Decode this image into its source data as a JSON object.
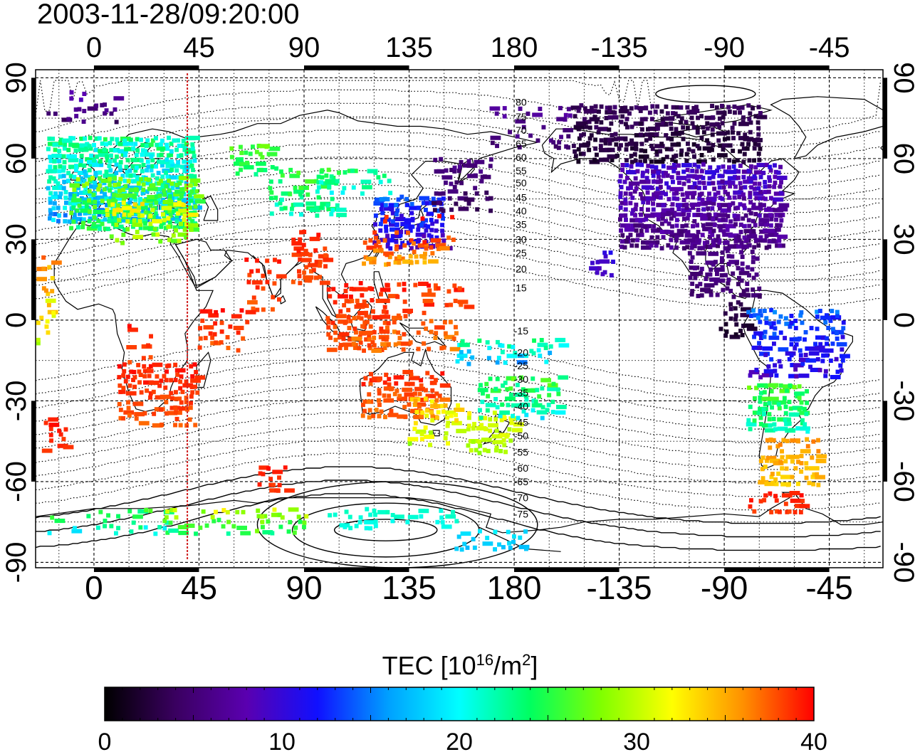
{
  "timestamp": "2003-11-28/09:20:00",
  "colorbar": {
    "title_prefix": "TEC  [10",
    "title_sup1": "16",
    "title_mid": "/m",
    "title_sup2": "2",
    "title_suffix": "]",
    "range": [
      0,
      40
    ],
    "tick_labels": [
      "0",
      "10",
      "20",
      "30",
      "40"
    ],
    "tick_values": [
      0,
      10,
      20,
      30,
      40
    ],
    "stops": [
      "#000000",
      "#3a0060",
      "#5a00b0",
      "#1010ff",
      "#00a0ff",
      "#00ffff",
      "#00ff60",
      "#80ff00",
      "#ffff00",
      "#ff9000",
      "#ff0000"
    ]
  },
  "axes": {
    "longitude_labels": [
      "0",
      "45",
      "90",
      "135",
      "180",
      "-135",
      "-90",
      "-45"
    ],
    "longitude_values": [
      0,
      45,
      90,
      135,
      180,
      225,
      270,
      315
    ],
    "latitude_labels": [
      "90",
      "60",
      "30",
      "0",
      "-30",
      "-60",
      "-90"
    ],
    "latitude_values": [
      90,
      60,
      30,
      0,
      -30,
      -60,
      -90
    ],
    "lon_range": [
      -25,
      338
    ],
    "lat_range": [
      -92,
      93
    ],
    "grid_lon_step": 15,
    "grid_lat_step": 15
  },
  "marker_line": {
    "lon": 40,
    "color": "#d02020"
  },
  "contour_labels": [
    "80",
    "75",
    "70",
    "65",
    "60",
    "55",
    "50",
    "45",
    "40",
    "35",
    "30",
    "25",
    "20",
    "15",
    "-15",
    "-20",
    "-25",
    "-30",
    "-35",
    "-40",
    "-45",
    "-50",
    "-55",
    "-60",
    "-65",
    "-70",
    "-75"
  ],
  "contour_label_lats": [
    81,
    75.5,
    70.5,
    65.5,
    60.5,
    55.5,
    51,
    45.5,
    40.5,
    35.5,
    30,
    25,
    19,
    12,
    -4,
    -12,
    -17,
    -22,
    -27,
    -32,
    -38,
    -43,
    -49,
    -55,
    -60,
    -66,
    -72
  ]
}
